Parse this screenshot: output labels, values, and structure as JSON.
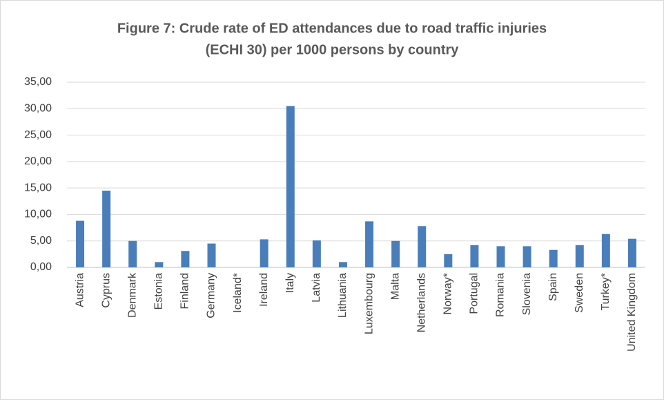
{
  "chart_data": {
    "type": "bar",
    "title": [
      "Figure 7: Crude rate of ED attendances due to road traffic injuries",
      "(ECHI 30) per 1000 persons by country"
    ],
    "categories": [
      "Austria",
      "Cyprus",
      "Denmark",
      "Estonia",
      "Finland",
      "Germany",
      "Iceland*",
      "Ireland",
      "Italy",
      "Latvia",
      "Lithuania",
      "Luxembourg",
      "Malta",
      "Netherlands",
      "Norway*",
      "Portugal",
      "Romania",
      "Slovenia",
      "Spain",
      "Sweden",
      "Turkey*",
      "United Kingdom"
    ],
    "values": [
      8.8,
      14.5,
      5.0,
      1.0,
      3.1,
      4.5,
      0,
      5.3,
      30.5,
      5.1,
      1.0,
      8.7,
      5.0,
      7.8,
      2.5,
      4.2,
      4.0,
      4.0,
      3.3,
      4.2,
      6.3,
      5.4
    ],
    "color": "#4a7ebb",
    "ylim": [
      0,
      35
    ],
    "yticks": [
      {
        "value": 0,
        "label": "0,00"
      },
      {
        "value": 5,
        "label": "5,00"
      },
      {
        "value": 10,
        "label": "10,00"
      },
      {
        "value": 15,
        "label": "15,00"
      },
      {
        "value": 20,
        "label": "20,00"
      },
      {
        "value": 25,
        "label": "25,00"
      },
      {
        "value": 30,
        "label": "30,00"
      },
      {
        "value": 35,
        "label": "35,00"
      }
    ],
    "grid": true
  }
}
